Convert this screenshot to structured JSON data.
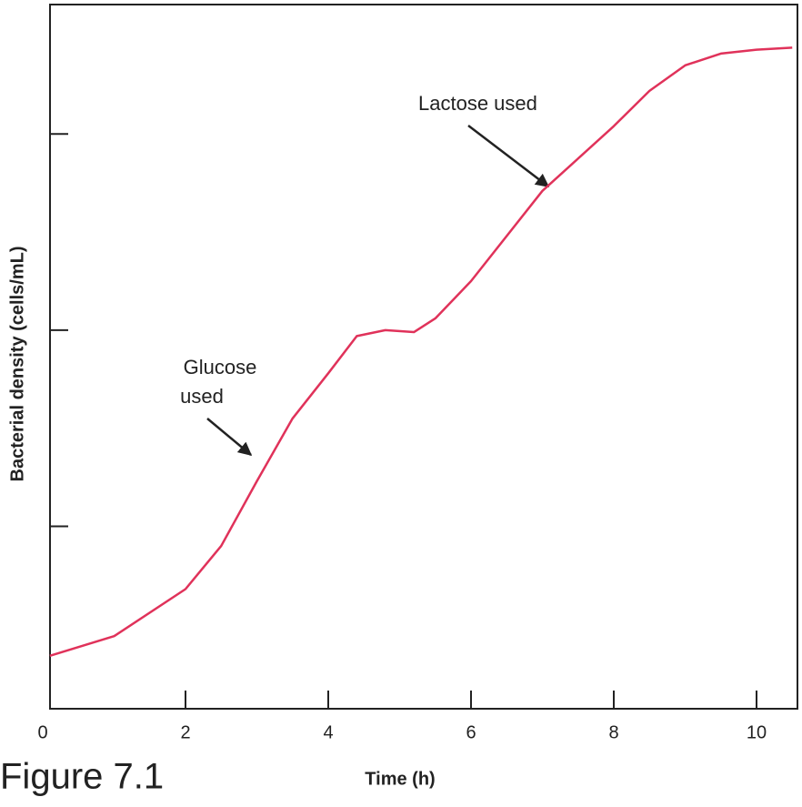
{
  "chart_data": {
    "type": "line",
    "figure_label": "Figure 7.1",
    "x_label": "Time (h)",
    "y_label": "Bacterial density (cells/mL)",
    "annotations": [
      {
        "lines": [
          "Lactose used"
        ]
      },
      {
        "lines": [
          "Glucose",
          "used"
        ]
      }
    ],
    "x": [
      0.1,
      1,
      2,
      2.5,
      3,
      3.5,
      4,
      4.4,
      4.8,
      5.2,
      5.5,
      6,
      7,
      8,
      8.5,
      9,
      9.5,
      10,
      10.5
    ],
    "series": [
      {
        "color": "#e0325a",
        "values": [
          0.34,
          0.44,
          0.68,
          0.9,
          1.23,
          1.55,
          1.78,
          1.97,
          2.0,
          1.99,
          2.06,
          2.25,
          2.71,
          3.04,
          3.22,
          3.35,
          3.41,
          3.43,
          3.44
        ]
      }
    ],
    "xlim": [
      0,
      10.6
    ],
    "xticks": [
      0,
      2,
      4,
      6,
      8,
      10
    ],
    "ylim": [
      0.07,
      3.66
    ],
    "yticks": [
      1,
      2,
      3
    ]
  }
}
